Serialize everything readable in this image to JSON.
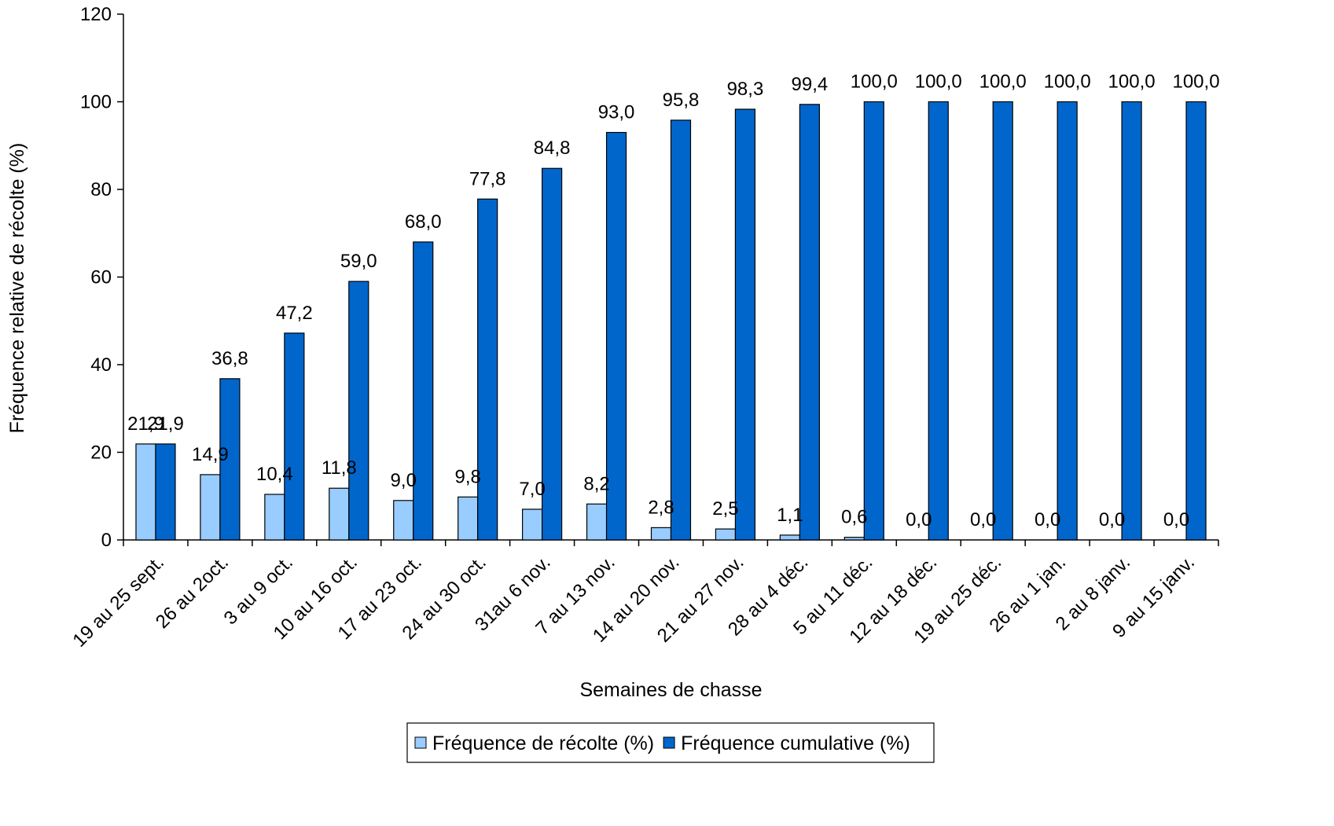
{
  "chart_data": {
    "type": "bar",
    "xlabel": "Semaines de chasse",
    "ylabel": "Fréquence relative de récolte (%)",
    "ylim": [
      0,
      120
    ],
    "yticks": [
      0,
      20,
      40,
      60,
      80,
      100,
      120
    ],
    "grid": false,
    "legend_position": "bottom",
    "categories": [
      "19 au 25 sept.",
      "26 au 2oct.",
      "3 au 9 oct.",
      "10 au 16 oct.",
      "17 au 23 oct.",
      "24 au 30 oct.",
      "31au 6 nov.",
      "7 au 13 nov.",
      "14 au 20 nov.",
      "21 au 27 nov.",
      "28 au 4 déc.",
      "5 au 11 déc.",
      "12 au 18 déc.",
      "19 au 25 déc.",
      "26 au 1 jan.",
      "2 au 8 janv.",
      "9 au 15 janv."
    ],
    "series": [
      {
        "name": "Fréquence de récolte (%)",
        "color": "#99ccff",
        "values": [
          21.9,
          14.9,
          10.4,
          11.8,
          9.0,
          9.8,
          7.0,
          8.2,
          2.8,
          2.5,
          1.1,
          0.6,
          0.0,
          0.0,
          0.0,
          0.0,
          0.0
        ],
        "labels": [
          "21,9",
          "14,9",
          "10,4",
          "11,8",
          "9,0",
          "9,8",
          "7,0",
          "8,2",
          "2,8",
          "2,5",
          "1,1",
          "0,6",
          "0,0",
          "0,0",
          "0,0",
          "0,0",
          "0,0"
        ]
      },
      {
        "name": "Fréquence cumulative (%)",
        "color": "#0066cc",
        "values": [
          21.9,
          36.8,
          47.2,
          59.0,
          68.0,
          77.8,
          84.8,
          93.0,
          95.8,
          98.3,
          99.4,
          100.0,
          100.0,
          100.0,
          100.0,
          100.0,
          100.0
        ],
        "labels": [
          "21,9",
          "36,8",
          "47,2",
          "59,0",
          "68,0",
          "77,8",
          "84,8",
          "93,0",
          "95,8",
          "98,3",
          "99,4",
          "100,0",
          "100,0",
          "100,0",
          "100,0",
          "100,0",
          "100,0"
        ]
      }
    ]
  }
}
